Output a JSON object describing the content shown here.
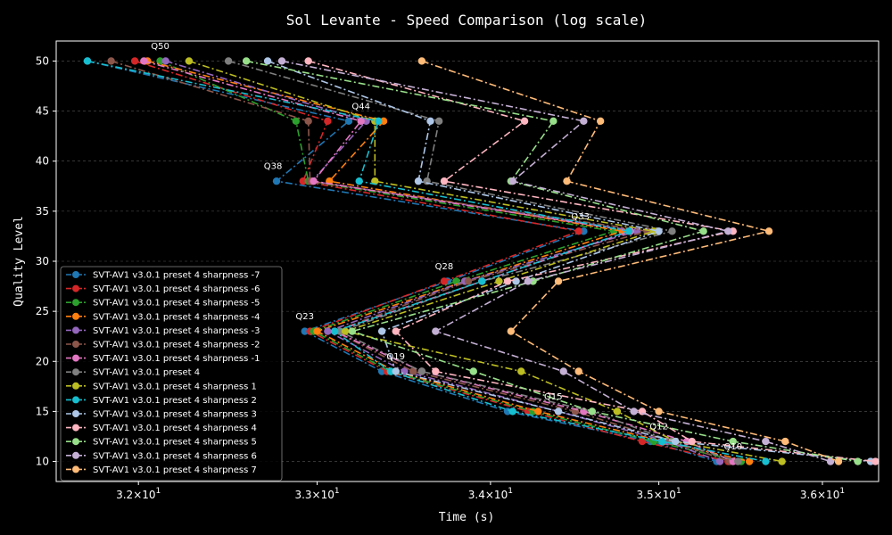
{
  "chart_data": {
    "type": "line",
    "title": "Sol Levante - Speed Comparison (log scale)",
    "xlabel": "Time (s)",
    "ylabel": "Quality Level",
    "xscale": "log",
    "xlim": [
      31.55,
      36.35
    ],
    "ylim": [
      8,
      52
    ],
    "x_ticks": [
      {
        "value": 32,
        "label": "3.2×10",
        "exp": "1"
      },
      {
        "value": 33,
        "label": "3.3×10",
        "exp": "1"
      },
      {
        "value": 34,
        "label": "3.4×10",
        "exp": "1"
      },
      {
        "value": 35,
        "label": "3.5×10",
        "exp": "1"
      },
      {
        "value": 36,
        "label": "3.6×10",
        "exp": "1"
      }
    ],
    "y_ticks": [
      10,
      15,
      20,
      25,
      30,
      35,
      40,
      45,
      50
    ],
    "grid": true,
    "legend_position": "lower-left",
    "y": [
      50,
      44,
      38,
      33,
      28,
      23,
      19,
      15,
      12,
      10
    ],
    "annotations": [
      {
        "text": "Q50",
        "x": 32.12,
        "y": 51.2
      },
      {
        "text": "Q44",
        "x": 33.25,
        "y": 45.2
      },
      {
        "text": "Q38",
        "x": 32.75,
        "y": 39.2
      },
      {
        "text": "Q33",
        "x": 34.53,
        "y": 34.2
      },
      {
        "text": "Q28",
        "x": 33.73,
        "y": 29.2
      },
      {
        "text": "Q23",
        "x": 32.93,
        "y": 24.2
      },
      {
        "text": "Q19",
        "x": 33.45,
        "y": 20.2
      },
      {
        "text": "Q15",
        "x": 34.37,
        "y": 16.2
      },
      {
        "text": "Q12",
        "x": 35.0,
        "y": 13.2
      },
      {
        "text": "Q10",
        "x": 35.45,
        "y": 11.2
      }
    ],
    "series": [
      {
        "name": "SVT-AV1 v3.0.1 preset 4 sharpness -7",
        "color": "#1f77b4",
        "x": [
          31.72,
          33.18,
          32.77,
          34.55,
          33.75,
          32.93,
          33.37,
          34.1,
          34.95,
          35.35
        ]
      },
      {
        "name": "SVT-AV1 v3.0.1 preset 4 sharpness -6",
        "color": "#d62728",
        "x": [
          31.98,
          33.06,
          32.92,
          34.52,
          33.73,
          32.96,
          33.4,
          34.22,
          34.9,
          35.42
        ]
      },
      {
        "name": "SVT-AV1 v3.0.1 preset 4 sharpness -5",
        "color": "#2ca02c",
        "x": [
          32.12,
          32.88,
          32.95,
          34.73,
          33.8,
          32.98,
          33.42,
          34.25,
          34.97,
          35.5
        ]
      },
      {
        "name": "SVT-AV1 v3.0.1 preset 4 sharpness -4",
        "color": "#ff7f0e",
        "x": [
          32.05,
          33.38,
          33.07,
          34.78,
          33.85,
          33.0,
          33.45,
          34.28,
          35.03,
          35.55
        ]
      },
      {
        "name": "SVT-AV1 v3.0.1 preset 4 sharpness -3",
        "color": "#9467bd",
        "x": [
          32.15,
          33.28,
          32.97,
          34.87,
          33.85,
          33.06,
          33.5,
          34.4,
          35.05,
          35.37
        ]
      },
      {
        "name": "SVT-AV1 v3.0.1 preset 4 sharpness -2",
        "color": "#8c564b",
        "x": [
          31.85,
          32.95,
          32.96,
          34.93,
          33.87,
          33.1,
          33.55,
          34.5,
          35.07,
          35.43
        ]
      },
      {
        "name": "SVT-AV1 v3.0.1 preset 4 sharpness -1",
        "color": "#e377c2",
        "x": [
          32.03,
          33.25,
          32.98,
          34.83,
          33.95,
          33.1,
          33.6,
          34.55,
          35.17,
          35.45
        ]
      },
      {
        "name": "SVT-AV1 v3.0.1 preset 4",
        "color": "#7f7f7f",
        "x": [
          32.5,
          33.7,
          33.63,
          35.08,
          33.95,
          33.13,
          33.6,
          34.6,
          35.08,
          35.48
        ]
      },
      {
        "name": "SVT-AV1 v3.0.1 preset 4 sharpness 1",
        "color": "#bcbd22",
        "x": [
          32.28,
          33.33,
          33.33,
          34.97,
          34.05,
          33.16,
          34.18,
          34.75,
          35.1,
          35.75
        ]
      },
      {
        "name": "SVT-AV1 v3.0.1 preset 4 sharpness 2",
        "color": "#17becf",
        "x": [
          31.72,
          33.35,
          33.24,
          34.82,
          33.95,
          33.1,
          33.42,
          34.13,
          35.02,
          35.65
        ]
      },
      {
        "name": "SVT-AV1 v3.0.1 preset 4 sharpness 3",
        "color": "#aec7e8",
        "x": [
          32.72,
          33.65,
          33.58,
          35.0,
          34.15,
          33.37,
          33.45,
          34.4,
          35.1,
          36.3
        ]
      },
      {
        "name": "SVT-AV1 v3.0.1 preset 4 sharpness 4",
        "color": "#ffb6c1",
        "x": [
          32.95,
          34.2,
          33.73,
          35.45,
          34.1,
          33.45,
          33.68,
          34.9,
          35.2,
          36.33
        ]
      },
      {
        "name": "SVT-AV1 v3.0.1 preset 4 sharpness 5",
        "color": "#98df8a",
        "x": [
          32.6,
          34.37,
          34.12,
          35.27,
          34.25,
          33.2,
          33.9,
          34.6,
          35.45,
          36.22
        ]
      },
      {
        "name": "SVT-AV1 v3.0.1 preset 4 sharpness 6",
        "color": "#c5b0d5",
        "x": [
          32.8,
          34.55,
          34.13,
          35.42,
          34.22,
          33.68,
          34.43,
          34.85,
          35.65,
          36.05
        ]
      },
      {
        "name": "SVT-AV1 v3.0.1 preset 4 sharpness 7",
        "color": "#ffbb78",
        "x": [
          33.6,
          34.65,
          34.45,
          35.67,
          34.4,
          34.12,
          34.52,
          35.0,
          35.77,
          36.1
        ]
      }
    ]
  }
}
